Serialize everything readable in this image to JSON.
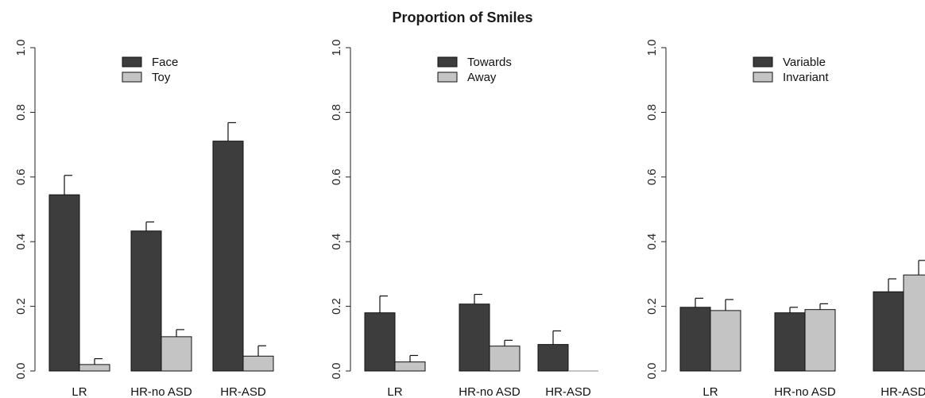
{
  "title": "Proportion of Smiles",
  "colors": {
    "dark": "#3d3d3d",
    "light": "#c4c4c4",
    "stroke": "#111111"
  },
  "chart_data": [
    {
      "type": "bar",
      "categories": [
        "LR",
        "HR-no ASD",
        "HR-ASD"
      ],
      "series": [
        {
          "name": "Face",
          "values": [
            0.545,
            0.433,
            0.711
          ],
          "error": [
            0.06,
            0.028,
            0.057
          ]
        },
        {
          "name": "Toy",
          "values": [
            0.02,
            0.106,
            0.046
          ],
          "error": [
            0.018,
            0.022,
            0.032
          ]
        }
      ],
      "ylim": [
        0,
        1.0
      ],
      "yticks": [
        "0.0",
        "0.2",
        "0.4",
        "0.6",
        "0.8",
        "1.0"
      ],
      "legend_position": "top-center"
    },
    {
      "type": "bar",
      "categories": [
        "LR",
        "HR-no ASD",
        "HR-ASD"
      ],
      "series": [
        {
          "name": "Towards",
          "values": [
            0.18,
            0.207,
            0.082
          ],
          "error": [
            0.052,
            0.03,
            0.042
          ]
        },
        {
          "name": "Away",
          "values": [
            0.028,
            0.077,
            0.0
          ],
          "error": [
            0.02,
            0.018,
            0
          ]
        }
      ],
      "ylim": [
        0,
        1.0
      ],
      "yticks": [
        "0.0",
        "0.2",
        "0.4",
        "0.6",
        "0.8",
        "1.0"
      ],
      "legend_position": "top-center"
    },
    {
      "type": "bar",
      "categories": [
        "LR",
        "HR-no ASD",
        "HR-ASD"
      ],
      "series": [
        {
          "name": "Variable",
          "values": [
            0.197,
            0.18,
            0.245
          ],
          "error": [
            0.028,
            0.017,
            0.04
          ]
        },
        {
          "name": "Invariant",
          "values": [
            0.187,
            0.19,
            0.297
          ],
          "error": [
            0.034,
            0.018,
            0.045
          ]
        }
      ],
      "ylim": [
        0,
        1.0
      ],
      "yticks": [
        "0.0",
        "0.2",
        "0.4",
        "0.6",
        "0.8",
        "1.0"
      ],
      "legend_position": "top-center"
    }
  ]
}
